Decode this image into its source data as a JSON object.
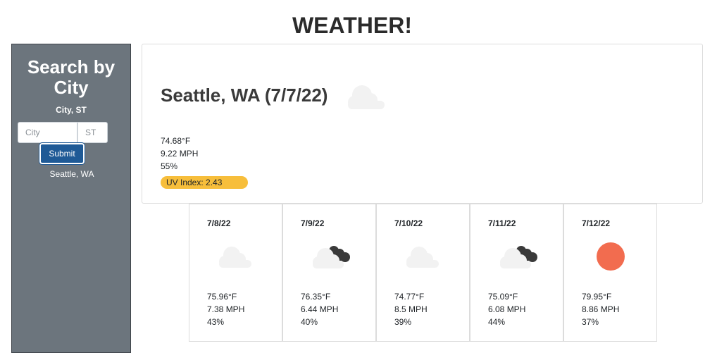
{
  "header": {
    "title": "WEATHER!"
  },
  "sidebar": {
    "heading": "Search by City",
    "hint": "City, ST",
    "city_placeholder": "City",
    "state_placeholder": "ST",
    "city_value": "",
    "state_value": "",
    "submit_label": "Submit",
    "history": [
      "Seattle, WA"
    ]
  },
  "current": {
    "title": "Seattle, WA (7/7/22)",
    "icon": "cloud-icon",
    "temp": "74.68°F",
    "wind": "9.22 MPH",
    "humidity": "55%",
    "uv": "UV Index: 2.43",
    "uv_color": "#f7be3b"
  },
  "forecast": [
    {
      "date": "7/8/22",
      "icon": "cloud-icon",
      "temp": "75.96°F",
      "wind": "7.38 MPH",
      "humidity": "43%"
    },
    {
      "date": "7/9/22",
      "icon": "cloudy-night-icon",
      "temp": "76.35°F",
      "wind": "6.44 MPH",
      "humidity": "40%"
    },
    {
      "date": "7/10/22",
      "icon": "cloud-icon",
      "temp": "74.77°F",
      "wind": "8.5 MPH",
      "humidity": "39%"
    },
    {
      "date": "7/11/22",
      "icon": "cloudy-night-icon",
      "temp": "75.09°F",
      "wind": "6.08 MPH",
      "humidity": "44%"
    },
    {
      "date": "7/12/22",
      "icon": "sun-icon",
      "temp": "79.95°F",
      "wind": "8.86 MPH",
      "humidity": "37%"
    }
  ],
  "colors": {
    "sidebar_bg": "#6c757d",
    "button_bg": "#1f5a96",
    "sun": "#f26c4f",
    "cloud": "#f2f2f2",
    "moon_cloud": "#3a3a3a"
  }
}
